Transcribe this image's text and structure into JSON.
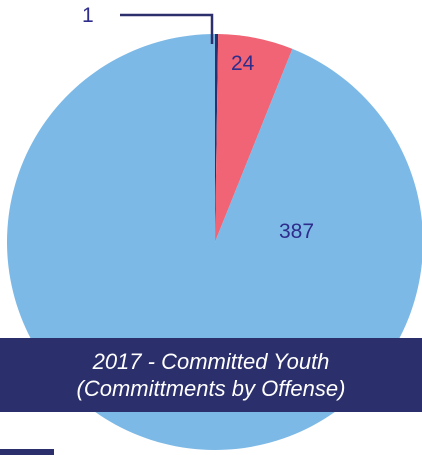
{
  "chart_data": {
    "type": "pie",
    "title_line1": "2017 - Committed Youth",
    "title_line2": "(Committments by Offense)",
    "slices": [
      {
        "value": 1,
        "label": "1",
        "color": "#2b2f6b"
      },
      {
        "value": 24,
        "label": "24",
        "color": "#f06475"
      },
      {
        "value": 387,
        "label": "387",
        "color": "#7db9e6"
      }
    ]
  },
  "colors": {
    "label_text": "#2e2d8c",
    "banner": "#2b2f6b",
    "leader_line": "#2b2f6b"
  }
}
